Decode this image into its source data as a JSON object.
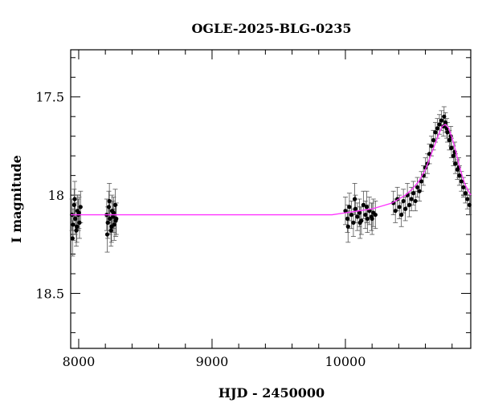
{
  "chart_data": {
    "type": "scatter",
    "title": "OGLE-2025-BLG-0235",
    "xlabel": "HJD - 2450000",
    "ylabel": "I magnitude",
    "xlim": [
      7940,
      10940
    ],
    "ylim": [
      18.78,
      17.26
    ],
    "y_inverted": true,
    "grid": false,
    "x_ticks": [
      {
        "value": 8000,
        "label": "8000"
      },
      {
        "value": 9000,
        "label": "9000"
      },
      {
        "value": 10000,
        "label": "10000"
      }
    ],
    "y_ticks": [
      {
        "value": 17.5,
        "label": "17.5"
      },
      {
        "value": 18,
        "label": "18"
      },
      {
        "value": 18.5,
        "label": "18.5"
      }
    ],
    "colors": {
      "points": "#000000",
      "model": "#ff33ff",
      "axes": "#000000"
    },
    "series": [
      {
        "kind": "points_with_errorbars",
        "x": [
          7950,
          7958,
          7966,
          7974,
          7982,
          7990,
          7998,
          8006,
          8014,
          7954,
          7970,
          7986,
          8002,
          8210,
          8218,
          8226,
          8234,
          8242,
          8250,
          8258,
          8266,
          8274,
          8282,
          8214,
          8230,
          8246,
          8262,
          8278,
          10000,
          10015,
          10030,
          10045,
          10060,
          10075,
          10090,
          10105,
          10120,
          10135,
          10150,
          10165,
          10180,
          10195,
          10210,
          10225,
          10020,
          10070,
          10110,
          10160,
          10200,
          10360,
          10375,
          10390,
          10405,
          10420,
          10435,
          10450,
          10465,
          10480,
          10495,
          10510,
          10525,
          10540,
          10555,
          10570,
          10585,
          10600,
          10615,
          10630,
          10645,
          10660,
          10675,
          10690,
          10705,
          10720,
          10735,
          10750,
          10765,
          10780,
          10795,
          10810,
          10825,
          10840,
          10855,
          10870,
          10885,
          10900,
          10915,
          10930,
          10740,
          10760,
          10790,
          10820,
          10850
        ],
        "y": [
          18.1,
          18.15,
          18.05,
          18.12,
          18.18,
          18.08,
          18.1,
          18.14,
          18.06,
          18.22,
          18.02,
          18.16,
          18.09,
          18.1,
          18.14,
          18.06,
          18.12,
          18.18,
          18.08,
          18.11,
          18.15,
          18.05,
          18.12,
          18.2,
          18.03,
          18.16,
          18.09,
          18.13,
          18.08,
          18.12,
          18.06,
          18.1,
          18.14,
          18.07,
          18.11,
          18.09,
          18.13,
          18.05,
          18.1,
          18.12,
          18.08,
          18.11,
          18.09,
          18.1,
          18.16,
          18.02,
          18.14,
          18.06,
          18.12,
          18.04,
          18.08,
          18.02,
          18.06,
          18.1,
          18.03,
          18.07,
          18.0,
          18.05,
          18.02,
          17.99,
          18.03,
          17.96,
          17.98,
          17.93,
          17.9,
          17.86,
          17.84,
          17.79,
          17.75,
          17.72,
          17.68,
          17.66,
          17.64,
          17.62,
          17.65,
          17.63,
          17.68,
          17.72,
          17.76,
          17.8,
          17.84,
          17.87,
          17.9,
          17.93,
          17.96,
          17.99,
          18.02,
          18.05,
          17.6,
          17.66,
          17.7,
          17.78,
          17.86
        ],
        "yerr": [
          0.08,
          0.08,
          0.08,
          0.08,
          0.08,
          0.08,
          0.08,
          0.08,
          0.08,
          0.09,
          0.09,
          0.08,
          0.08,
          0.08,
          0.08,
          0.08,
          0.08,
          0.08,
          0.08,
          0.08,
          0.08,
          0.08,
          0.08,
          0.09,
          0.09,
          0.08,
          0.08,
          0.08,
          0.07,
          0.07,
          0.07,
          0.07,
          0.07,
          0.07,
          0.07,
          0.07,
          0.07,
          0.07,
          0.07,
          0.07,
          0.07,
          0.07,
          0.07,
          0.07,
          0.08,
          0.08,
          0.08,
          0.08,
          0.08,
          0.06,
          0.06,
          0.06,
          0.06,
          0.06,
          0.06,
          0.06,
          0.06,
          0.06,
          0.06,
          0.06,
          0.05,
          0.05,
          0.05,
          0.05,
          0.05,
          0.05,
          0.05,
          0.05,
          0.05,
          0.05,
          0.05,
          0.05,
          0.05,
          0.05,
          0.05,
          0.05,
          0.05,
          0.05,
          0.05,
          0.05,
          0.05,
          0.05,
          0.05,
          0.05,
          0.05,
          0.05,
          0.05,
          0.05,
          0.05,
          0.05,
          0.05,
          0.05,
          0.05
        ]
      },
      {
        "kind": "model_curve",
        "x": [
          7940,
          8200,
          8500,
          8800,
          9100,
          9400,
          9700,
          9900,
          10000,
          10100,
          10200,
          10300,
          10350,
          10400,
          10450,
          10500,
          10550,
          10600,
          10650,
          10700,
          10725,
          10750,
          10775,
          10800,
          10825,
          10850,
          10875,
          10900,
          10940
        ],
        "y": [
          18.1,
          18.1,
          18.1,
          18.1,
          18.1,
          18.1,
          18.1,
          18.1,
          18.09,
          18.08,
          18.07,
          18.05,
          18.04,
          18.02,
          18.0,
          17.97,
          17.93,
          17.87,
          17.78,
          17.69,
          17.65,
          17.64,
          17.66,
          17.71,
          17.77,
          17.84,
          17.9,
          17.95,
          18.0
        ]
      }
    ]
  }
}
